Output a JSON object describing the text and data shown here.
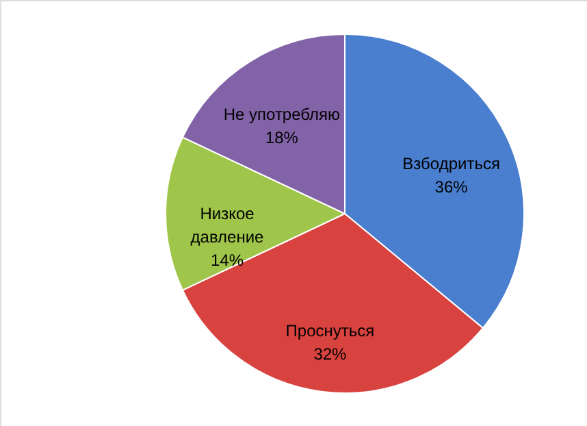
{
  "chart_data": {
    "type": "pie",
    "categories": [
      "Взбодриться",
      "Проснуться",
      "Низкое давление",
      "Не употребляю"
    ],
    "values": [
      36,
      32,
      14,
      18
    ],
    "value_labels": [
      "36%",
      "32%",
      "14%",
      "18%"
    ],
    "colors": [
      "#4a7fcf",
      "#d9433f",
      "#9fc54a",
      "#8363a8"
    ]
  }
}
